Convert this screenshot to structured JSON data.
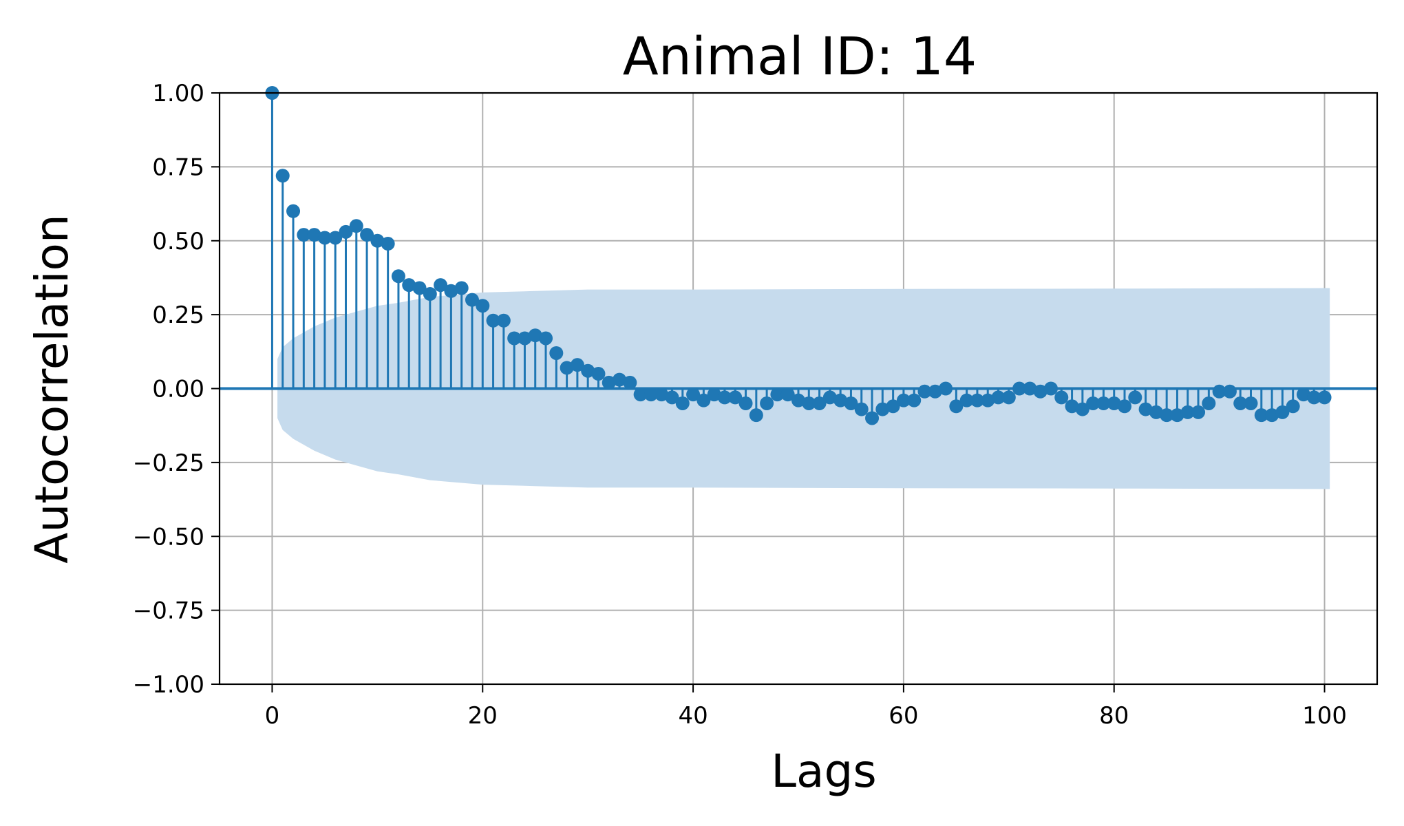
{
  "chart_data": {
    "type": "stem",
    "title": "Animal ID: 14",
    "xlabel": "Lags",
    "ylabel": "Autocorrelation",
    "xlim": [
      -5,
      105
    ],
    "ylim": [
      -1.0,
      1.0
    ],
    "x_ticks": [
      0,
      20,
      40,
      60,
      80,
      100
    ],
    "x_tick_labels": [
      "0",
      "20",
      "40",
      "60",
      "80",
      "100"
    ],
    "y_ticks": [
      1.0,
      0.75,
      0.5,
      0.25,
      0.0,
      -0.25,
      -0.5,
      -0.75,
      -1.0
    ],
    "y_tick_labels": [
      "1.00",
      "0.75",
      "0.50",
      "0.25",
      "0.00",
      "−0.25",
      "−0.50",
      "−0.75",
      "−1.00"
    ],
    "grid": true,
    "colors": {
      "series": "#1f77b4",
      "confidence_band": "#c6dbed",
      "grid": "#b0b0b0"
    },
    "lags": [
      0,
      1,
      2,
      3,
      4,
      5,
      6,
      7,
      8,
      9,
      10,
      11,
      12,
      13,
      14,
      15,
      16,
      17,
      18,
      19,
      20,
      21,
      22,
      23,
      24,
      25,
      26,
      27,
      28,
      29,
      30,
      31,
      32,
      33,
      34,
      35,
      36,
      37,
      38,
      39,
      40,
      41,
      42,
      43,
      44,
      45,
      46,
      47,
      48,
      49,
      50,
      51,
      52,
      53,
      54,
      55,
      56,
      57,
      58,
      59,
      60,
      61,
      62,
      63,
      64,
      65,
      66,
      67,
      68,
      69,
      70,
      71,
      72,
      73,
      74,
      75,
      76,
      77,
      78,
      79,
      80,
      81,
      82,
      83,
      84,
      85,
      86,
      87,
      88,
      89,
      90,
      91,
      92,
      93,
      94,
      95,
      96,
      97,
      98,
      99,
      100
    ],
    "values": [
      1.0,
      0.72,
      0.6,
      0.52,
      0.52,
      0.51,
      0.51,
      0.53,
      0.55,
      0.52,
      0.5,
      0.49,
      0.38,
      0.35,
      0.34,
      0.32,
      0.35,
      0.33,
      0.34,
      0.3,
      0.28,
      0.23,
      0.23,
      0.17,
      0.17,
      0.18,
      0.17,
      0.12,
      0.07,
      0.08,
      0.06,
      0.05,
      0.02,
      0.03,
      0.02,
      -0.02,
      -0.02,
      -0.02,
      -0.03,
      -0.05,
      -0.02,
      -0.04,
      -0.02,
      -0.03,
      -0.03,
      -0.05,
      -0.09,
      -0.05,
      -0.02,
      -0.02,
      -0.04,
      -0.05,
      -0.05,
      -0.03,
      -0.04,
      -0.05,
      -0.07,
      -0.1,
      -0.07,
      -0.06,
      -0.04,
      -0.04,
      -0.01,
      -0.01,
      0.0,
      -0.06,
      -0.04,
      -0.04,
      -0.04,
      -0.03,
      -0.03,
      0.0,
      0.0,
      -0.01,
      0.0,
      -0.03,
      -0.06,
      -0.07,
      -0.05,
      -0.05,
      -0.05,
      -0.06,
      -0.03,
      -0.07,
      -0.08,
      -0.09,
      -0.09,
      -0.08,
      -0.08,
      -0.05,
      -0.01,
      -0.01,
      -0.05,
      -0.05,
      -0.09,
      -0.09,
      -0.08,
      -0.06,
      -0.02,
      -0.03,
      -0.03
    ],
    "confidence_band": {
      "lags": [
        0.5,
        1,
        2,
        3,
        4,
        6,
        8,
        10,
        12,
        15,
        20,
        25,
        30,
        40,
        60,
        80,
        100.5
      ],
      "upper": [
        0.1,
        0.14,
        0.17,
        0.19,
        0.21,
        0.24,
        0.26,
        0.28,
        0.29,
        0.31,
        0.325,
        0.33,
        0.335,
        0.335,
        0.337,
        0.338,
        0.34
      ]
    }
  }
}
